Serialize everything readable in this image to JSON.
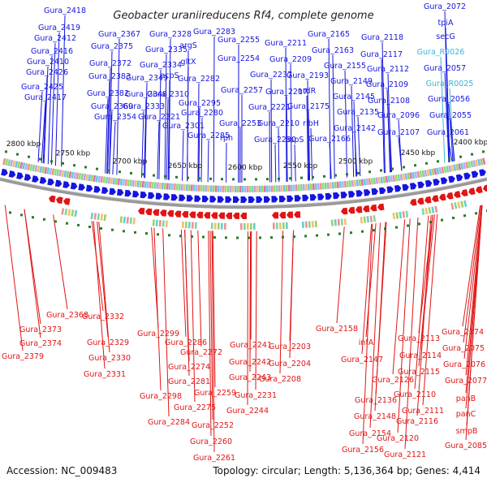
{
  "title": "Geobacter uraniireducens Rf4, complete genome",
  "footer": {
    "accession": "Accession: NC_009483",
    "summary": "Topology: circular; Length: 5,136,364 bp; Genes: 4,414"
  },
  "colors": {
    "forward": "#1515e0",
    "reverse": "#e01515",
    "rna": "#3bb3d8",
    "backbone": "#9a9a9a",
    "tick": "#2a7a2a"
  },
  "kbp_ticks": [
    "2800 kbp",
    "2750 kbp",
    "2700 kbp",
    "2650 kbp",
    "2600 kbp",
    "2550 kbp",
    "2500 kbp",
    "2450 kbp",
    "2400 kbp"
  ],
  "top_labels": [
    "Gura_2418",
    "Gura_2419",
    "Gura_2412",
    "Gura_2416",
    "Gura_2410",
    "Gura_2426",
    "Gura_2425",
    "Gura_2417",
    "Gura_2367",
    "Gura_2375",
    "Gura_2372",
    "Gura_2383",
    "Gura_2382",
    "Gura_2369",
    "Gura_2354",
    "Gura_2328",
    "Gura_2335",
    "Gura_2334",
    "Gura_2349",
    "Gura_2348",
    "Gura_2333",
    "Gura_2321",
    "Gura_2310",
    "Gura_2301",
    "Gura_2283",
    "argS",
    "gltX",
    "acpS",
    "Gura_2282",
    "Gura_2295",
    "Gura_2280",
    "Gura_2285",
    "Gura_2255",
    "Gura_2254",
    "Gura_2257",
    "Gura_2253",
    "rph",
    "Gura_2211",
    "Gura_2209",
    "Gura_2237",
    "Gura_2217",
    "Gura_2221",
    "Gura_2210",
    "Gura_2230",
    "aspS",
    "Gura_2165",
    "Gura_2163",
    "Gura_2193",
    "nrdR",
    "Gura_2175",
    "ribH",
    "Gura_2166",
    "Gura_2155",
    "Gura_2149",
    "Gura_2145",
    "Gura_2135",
    "Gura_2142",
    "Gura_2118",
    "Gura_2117",
    "Gura_2112",
    "Gura_2109",
    "Gura_2108",
    "Gura_2096",
    "Gura_2107",
    "Gura_2072",
    "tpiA",
    "secG",
    "Gura_R0026",
    "Gura_2057",
    "Gura_R0025",
    "Gura_2056",
    "Gura_2055",
    "Gura_2061"
  ],
  "bottom_labels": [
    "Gura_2368",
    "Gura_2373",
    "Gura_2374",
    "Gura_2379",
    "Gura_2332",
    "Gura_2329",
    "Gura_2330",
    "Gura_2331",
    "Gura_2299",
    "Gura_2286",
    "Gura_2272",
    "Gura_2274",
    "Gura_2281",
    "Gura_2298",
    "Gura_2275",
    "Gura_2284",
    "Gura_2259",
    "Gura_2252",
    "Gura_2260",
    "Gura_2261",
    "Gura_2241",
    "Gura_2242",
    "Gura_2243",
    "Gura_2244",
    "Gura_2231",
    "Gura_2203",
    "Gura_2204",
    "Gura_2208",
    "Gura_2158",
    "infA",
    "Gura_2147",
    "Gura_2136",
    "Gura_2148",
    "Gura_2154",
    "Gura_2156",
    "Gura_2113",
    "Gura_2114",
    "Gura_2115",
    "Gura_2126",
    "Gura_2110",
    "Gura_2111",
    "Gura_2116",
    "Gura_2120",
    "Gura_2121",
    "Gura_2074",
    "Gura_2075",
    "Gura_2076",
    "Gura_2077",
    "panB",
    "panC",
    "smpB",
    "Gura_2085"
  ]
}
